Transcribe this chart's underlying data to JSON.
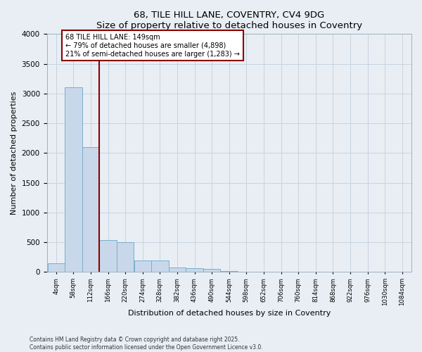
{
  "title1": "68, TILE HILL LANE, COVENTRY, CV4 9DG",
  "title2": "Size of property relative to detached houses in Coventry",
  "xlabel": "Distribution of detached houses by size in Coventry",
  "ylabel": "Number of detached properties",
  "bin_labels": [
    "4sqm",
    "58sqm",
    "112sqm",
    "166sqm",
    "220sqm",
    "274sqm",
    "328sqm",
    "382sqm",
    "436sqm",
    "490sqm",
    "544sqm",
    "598sqm",
    "652sqm",
    "706sqm",
    "760sqm",
    "814sqm",
    "868sqm",
    "922sqm",
    "976sqm",
    "1030sqm",
    "1084sqm"
  ],
  "bin_starts": [
    4,
    58,
    112,
    166,
    220,
    274,
    328,
    382,
    436,
    490,
    544,
    598,
    652,
    706,
    760,
    814,
    868,
    922,
    976,
    1030,
    1084
  ],
  "bar_heights": [
    150,
    3100,
    2100,
    540,
    500,
    200,
    200,
    80,
    60,
    50,
    20,
    8,
    3,
    2,
    1,
    1,
    0,
    0,
    0,
    0
  ],
  "bar_color": "#c8d8ea",
  "bar_edge_color": "#7aaecc",
  "grid_color": "#c8d4e0",
  "bg_color": "#e8eef4",
  "vline_x": 166,
  "vline_color": "#8b0000",
  "annotation_line1": "68 TILE HILL LANE: 149sqm",
  "annotation_line2": "← 79% of detached houses are smaller (4,898)",
  "annotation_line3": "21% of semi-detached houses are larger (1,283) →",
  "annotation_box_color": "#ffffff",
  "annotation_box_edge": "#8b0000",
  "ylim": [
    0,
    4000
  ],
  "yticks": [
    0,
    500,
    1000,
    1500,
    2000,
    2500,
    3000,
    3500,
    4000
  ],
  "footer1": "Contains HM Land Registry data © Crown copyright and database right 2025.",
  "footer2": "Contains public sector information licensed under the Open Government Licence v3.0."
}
